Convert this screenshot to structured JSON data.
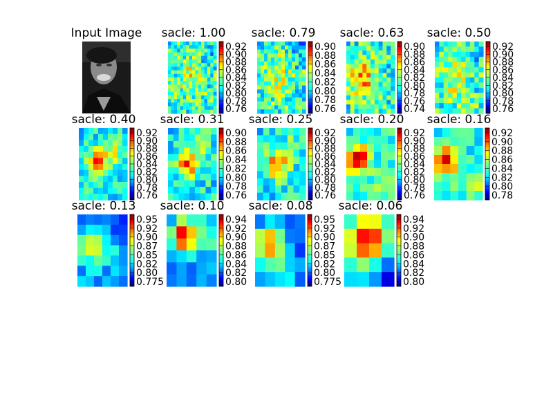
{
  "chart_data": {
    "type": "heatmap",
    "colormap": "jet",
    "input_panel": {
      "title": "Input Image"
    },
    "panels": [
      {
        "title": "sacle: 1.00",
        "scale": 1.0,
        "grid": [
          16,
          20
        ],
        "colorbar_ticks": [
          "0.76",
          "0.78",
          "0.80",
          "0.82",
          "0.84",
          "0.86",
          "0.88",
          "0.90",
          "0.92"
        ],
        "clip_ticks": false,
        "pattern": "fine"
      },
      {
        "title": "sacle: 0.79",
        "scale": 0.79,
        "grid": [
          14,
          18
        ],
        "colorbar_ticks": [
          "0.76",
          "0.78",
          "0.80",
          "0.82",
          "0.84",
          "0.86",
          "0.88",
          "0.90"
        ],
        "clip_ticks": false,
        "pattern": "fine"
      },
      {
        "title": "sacle: 0.63",
        "scale": 0.63,
        "grid": [
          12,
          16
        ],
        "colorbar_ticks": [
          "0.74",
          "0.76",
          "0.78",
          "0.80",
          "0.82",
          "0.84",
          "0.86",
          "0.88",
          "0.90"
        ],
        "clip_ticks": false,
        "pattern": "hot"
      },
      {
        "title": "sacle: 0.50",
        "scale": 0.5,
        "grid": [
          11,
          14
        ],
        "colorbar_ticks": [
          "0.76",
          "0.78",
          "0.80",
          "0.82",
          "0.84",
          "0.86",
          "0.88",
          "0.90",
          "0.92"
        ],
        "clip_ticks": false,
        "pattern": "fine"
      },
      {
        "title": "sacle: 0.40",
        "scale": 0.4,
        "grid": [
          10,
          12
        ],
        "colorbar_ticks": [
          "0.76",
          "0.78",
          "0.80",
          "0.82",
          "0.84",
          "0.86",
          "0.88",
          "0.90",
          "0.92"
        ],
        "clip_ticks": false,
        "pattern": "blob"
      },
      {
        "title": "sacle: 0.31",
        "scale": 0.31,
        "grid": [
          9,
          11
        ],
        "colorbar_ticks": [
          "0.76",
          "0.78",
          "0.80",
          "0.82",
          "0.84",
          "0.86",
          "0.88",
          "0.90"
        ],
        "clip_ticks": false,
        "pattern": "blob"
      },
      {
        "title": "sacle: 0.25",
        "scale": 0.25,
        "grid": [
          8,
          10
        ],
        "colorbar_ticks": [
          "0.76",
          "0.78",
          "0.80",
          "0.82",
          "0.84",
          "0.86",
          "0.88",
          "0.90",
          "0.92"
        ],
        "clip_ticks": false,
        "pattern": "blob"
      },
      {
        "title": "sacle: 0.20",
        "scale": 0.2,
        "grid": [
          7,
          9
        ],
        "colorbar_ticks": [
          "0.76",
          "0.78",
          "0.80",
          "0.82",
          "0.84",
          "0.86",
          "0.88",
          "0.90",
          "0.92"
        ],
        "clip_ticks": false,
        "pattern": "left"
      },
      {
        "title": "sacle: 0.16",
        "scale": 0.16,
        "grid": [
          6,
          8
        ],
        "colorbar_ticks": [
          "0.78",
          "0.80",
          "0.82",
          "0.84",
          "0.86",
          "0.88",
          "0.90",
          "0.92"
        ],
        "clip_ticks": false,
        "pattern": "left"
      },
      {
        "title": "sacle: 0.13",
        "scale": 0.13,
        "grid": [
          6,
          7
        ],
        "colorbar_ticks": [
          "0.775",
          "0.80",
          "0.82",
          "0.85",
          "0.87",
          "0.90",
          "0.92",
          "0.95"
        ],
        "clip_ticks": true,
        "pattern": "cool"
      },
      {
        "title": "sacle: 0.10",
        "scale": 0.1,
        "grid": [
          5,
          6
        ],
        "colorbar_ticks": [
          "0.80",
          "0.82",
          "0.84",
          "0.86",
          "0.88",
          "0.90",
          "0.92",
          "0.94"
        ],
        "clip_ticks": true,
        "pattern": "topleft"
      },
      {
        "title": "sacle: 0.08",
        "scale": 0.08,
        "grid": [
          5,
          5
        ],
        "colorbar_ticks": [
          "0.775",
          "0.80",
          "0.82",
          "0.85",
          "0.87",
          "0.90",
          "0.92",
          "0.95"
        ],
        "clip_ticks": true,
        "pattern": "smooth"
      },
      {
        "title": "sacle: 0.06",
        "scale": 0.06,
        "grid": [
          4,
          5
        ],
        "colorbar_ticks": [
          "0.80",
          "0.82",
          "0.84",
          "0.86",
          "0.88",
          "0.90",
          "0.92",
          "0.94"
        ],
        "clip_ticks": false,
        "pattern": "center"
      }
    ]
  }
}
